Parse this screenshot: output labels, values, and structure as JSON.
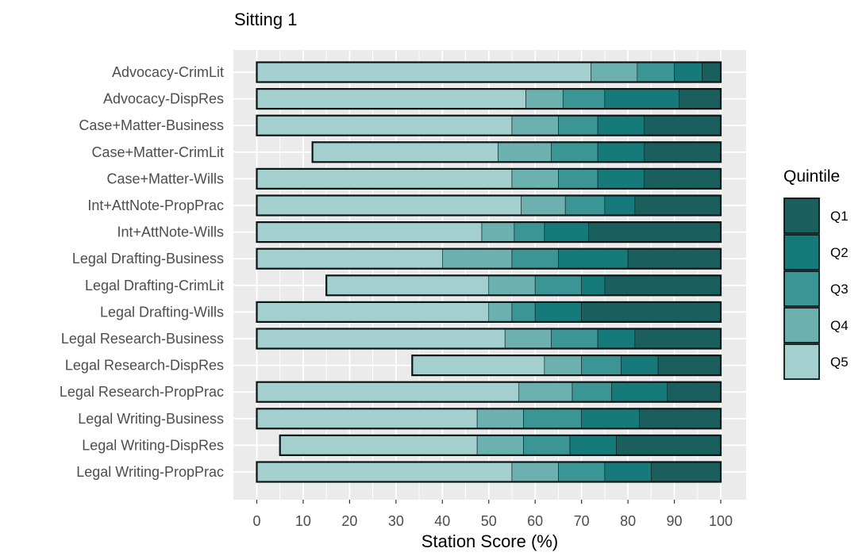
{
  "chart_data": {
    "type": "bar",
    "orientation": "horizontal",
    "stacked": true,
    "title": "Sitting 1",
    "xlabel": "Station Score (%)",
    "ylabel": "",
    "xlim": [
      0,
      100
    ],
    "xticks": [
      0,
      10,
      20,
      30,
      40,
      50,
      60,
      70,
      80,
      90,
      100
    ],
    "grid": true,
    "legend": {
      "title": "Quintile",
      "position": "right",
      "entries": [
        "Q1",
        "Q2",
        "Q3",
        "Q4",
        "Q5"
      ]
    },
    "colors": {
      "Q1": "#1a5f5d",
      "Q2": "#167a7a",
      "Q3": "#3b9594",
      "Q4": "#6cb1b0",
      "Q5": "#a3cfce"
    },
    "categories": [
      "Advocacy-CrimLit",
      "Advocacy-DispRes",
      "Case+Matter-Business",
      "Case+Matter-CrimLit",
      "Case+Matter-Wills",
      "Int+AttNote-PropPrac",
      "Int+AttNote-Wills",
      "Legal Drafting-Business",
      "Legal Drafting-CrimLit",
      "Legal Drafting-Wills",
      "Legal Research-Business",
      "Legal Research-DispRes",
      "Legal Research-PropPrac",
      "Legal Writing-Business",
      "Legal Writing-DispRes",
      "Legal Writing-PropPrac"
    ],
    "bars": [
      {
        "min": 0,
        "q5_max": 72,
        "q4_max": 82,
        "q3_max": 90,
        "q2_max": 96,
        "max": 100
      },
      {
        "min": 0,
        "q5_max": 58,
        "q4_max": 66,
        "q3_max": 75,
        "q2_max": 91,
        "max": 100
      },
      {
        "min": 0,
        "q5_max": 55,
        "q4_max": 65,
        "q3_max": 73.5,
        "q2_max": 83.5,
        "max": 100
      },
      {
        "min": 12,
        "q5_max": 52,
        "q4_max": 63.5,
        "q3_max": 73.5,
        "q2_max": 83.5,
        "max": 100
      },
      {
        "min": 0,
        "q5_max": 55,
        "q4_max": 65,
        "q3_max": 73.5,
        "q2_max": 83.5,
        "max": 100
      },
      {
        "min": 0,
        "q5_max": 57,
        "q4_max": 66.5,
        "q3_max": 75,
        "q2_max": 81.5,
        "max": 100
      },
      {
        "min": 0,
        "q5_max": 48.5,
        "q4_max": 55.5,
        "q3_max": 62,
        "q2_max": 71.5,
        "max": 100
      },
      {
        "min": 0,
        "q5_max": 40,
        "q4_max": 55,
        "q3_max": 65,
        "q2_max": 80,
        "max": 100
      },
      {
        "min": 15,
        "q5_max": 50,
        "q4_max": 60,
        "q3_max": 70,
        "q2_max": 75,
        "max": 100
      },
      {
        "min": 0,
        "q5_max": 50,
        "q4_max": 55,
        "q3_max": 60,
        "q2_max": 70,
        "max": 100
      },
      {
        "min": 0,
        "q5_max": 53.5,
        "q4_max": 63.5,
        "q3_max": 73.5,
        "q2_max": 81.5,
        "max": 100
      },
      {
        "min": 33.5,
        "q5_max": 62,
        "q4_max": 70,
        "q3_max": 78.5,
        "q2_max": 86.5,
        "max": 100
      },
      {
        "min": 0,
        "q5_max": 56.5,
        "q4_max": 68,
        "q3_max": 76.5,
        "q2_max": 88.5,
        "max": 100
      },
      {
        "min": 0,
        "q5_max": 47.5,
        "q4_max": 57.5,
        "q3_max": 70,
        "q2_max": 82.5,
        "max": 100
      },
      {
        "min": 5,
        "q5_max": 47.5,
        "q4_max": 57.5,
        "q3_max": 67.5,
        "q2_max": 77.5,
        "max": 100
      },
      {
        "min": 0,
        "q5_max": 55,
        "q4_max": 65,
        "q3_max": 75,
        "q2_max": 85,
        "max": 100
      }
    ]
  }
}
